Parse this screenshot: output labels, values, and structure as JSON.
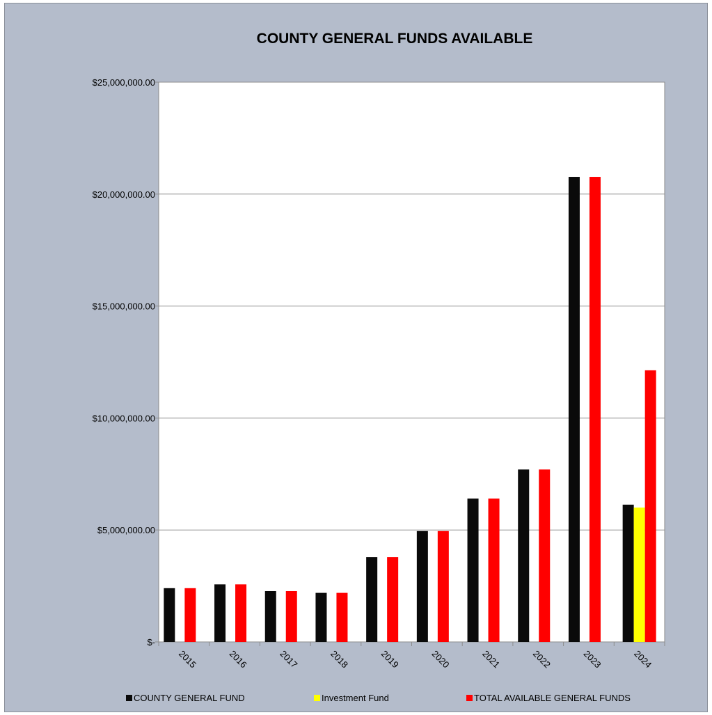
{
  "chart_data": {
    "type": "bar",
    "title": "COUNTY GENERAL FUNDS AVAILABLE",
    "xlabel": "",
    "ylabel": "",
    "categories": [
      "2015",
      "2016",
      "2017",
      "2018",
      "2019",
      "2020",
      "2021",
      "2022",
      "2023",
      "2024"
    ],
    "series": [
      {
        "name": "COUNTY GENERAL FUND",
        "color": "#0a0a0a",
        "values": [
          2400000,
          2570000,
          2270000,
          2190000,
          3790000,
          4950000,
          6400000,
          7700000,
          20770000,
          6130000
        ]
      },
      {
        "name": "Investment Fund",
        "color": "#ffff00",
        "values": [
          0,
          0,
          0,
          0,
          0,
          0,
          0,
          0,
          0,
          6000000
        ]
      },
      {
        "name": "TOTAL AVAILABLE GENERAL FUNDS",
        "color": "#ff0000",
        "values": [
          2400000,
          2570000,
          2270000,
          2190000,
          3790000,
          4950000,
          6400000,
          7700000,
          20770000,
          12130000
        ]
      }
    ],
    "ylim": [
      0,
      25000000
    ],
    "yticks": [
      0,
      5000000,
      10000000,
      15000000,
      20000000,
      25000000
    ],
    "ytick_labels": [
      "$-",
      "$5,000,000.00",
      "$10,000,000.00",
      "$15,000,000.00",
      "$20,000,000.00",
      "$25,000,000.00"
    ],
    "grid": true,
    "legend_position": "bottom"
  }
}
